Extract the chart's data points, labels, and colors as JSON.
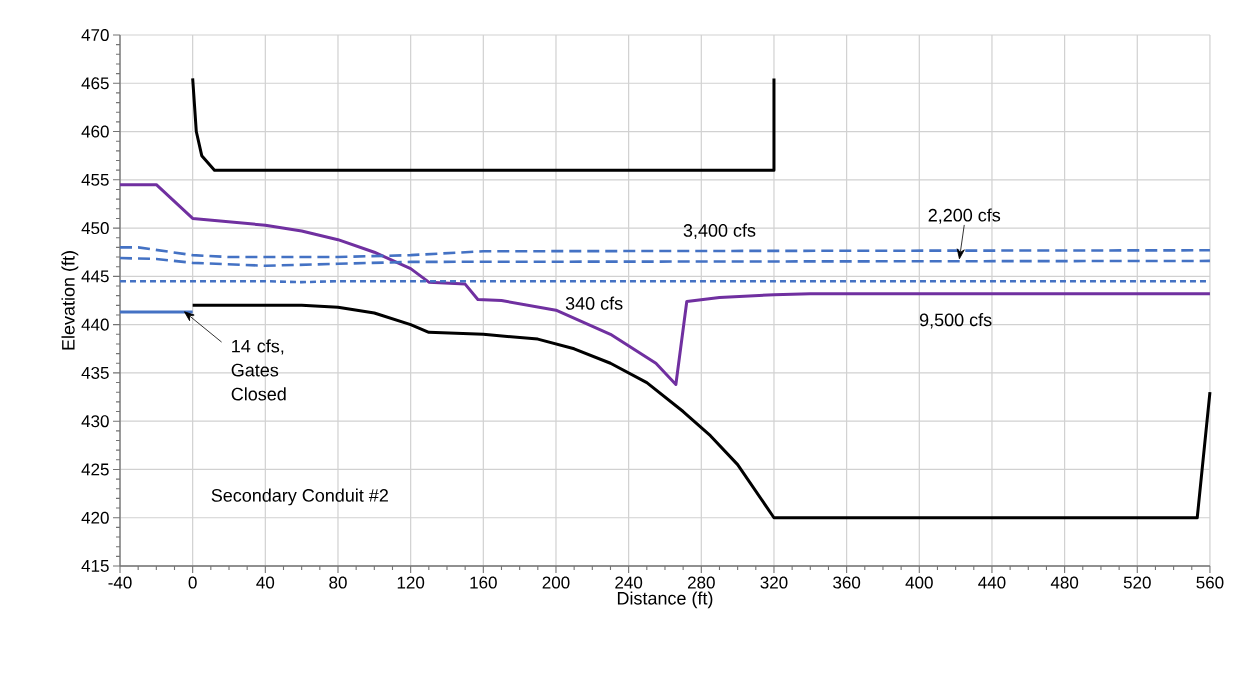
{
  "chart_data": {
    "type": "line",
    "xlabel": "Distance (ft)",
    "ylabel": "Elevation (ft)",
    "xlim": [
      -40,
      560
    ],
    "xticks": [
      -40,
      0,
      40,
      80,
      120,
      160,
      200,
      240,
      280,
      320,
      360,
      400,
      440,
      480,
      520,
      560
    ],
    "ylim": [
      415,
      470
    ],
    "yticks": [
      415,
      420,
      425,
      430,
      435,
      440,
      445,
      450,
      455,
      460,
      465,
      470
    ],
    "grid": true,
    "series": [
      {
        "color": "#000000",
        "line_style": "solid",
        "x": [
          0,
          2,
          5,
          12,
          320,
          320
        ],
        "values": [
          465.5,
          460,
          457.5,
          456,
          456,
          465.5
        ]
      },
      {
        "color": "#000000",
        "line_style": "solid",
        "x": [
          0,
          60,
          80,
          100,
          120,
          130,
          160,
          190,
          210,
          230,
          250,
          270,
          285,
          300,
          320,
          553,
          560
        ],
        "values": [
          442,
          442,
          441.8,
          441.2,
          440,
          439.2,
          439,
          438.5,
          437.5,
          436,
          434,
          431,
          428.5,
          425.5,
          420,
          420,
          433
        ]
      },
      {
        "color": "#7030a0",
        "line_style": "solid",
        "x": [
          -40,
          -20,
          0,
          40,
          60,
          80,
          100,
          120,
          130,
          150,
          157,
          170,
          200,
          230,
          255,
          266,
          272,
          290,
          320,
          340,
          560
        ],
        "values": [
          454.5,
          454.5,
          451,
          450.3,
          449.7,
          448.8,
          447.5,
          445.8,
          444.4,
          444.2,
          442.6,
          442.5,
          441.5,
          439,
          436,
          433.8,
          442.4,
          442.8,
          443.1,
          443.2,
          443.2
        ]
      },
      {
        "color": "#4472c4",
        "line_style": "dashed",
        "x": [
          -40,
          -30,
          0,
          20,
          80,
          120,
          160,
          560
        ],
        "values": [
          448,
          448,
          447.2,
          447,
          447,
          447.2,
          447.6,
          447.7
        ]
      },
      {
        "color": "#4472c4",
        "line_style": "dashed",
        "x": [
          -40,
          -20,
          0,
          40,
          80,
          120,
          560
        ],
        "values": [
          446.9,
          446.8,
          446.4,
          446.1,
          446.3,
          446.5,
          446.6
        ]
      },
      {
        "color": "#4472c4",
        "line_style": "dotted",
        "x": [
          -40,
          40,
          60,
          80,
          560
        ],
        "values": [
          444.5,
          444.5,
          444.4,
          444.5,
          444.5
        ]
      },
      {
        "color": "#4472c4",
        "line_style": "solid",
        "x": [
          -40,
          0
        ],
        "values": [
          441.3,
          441.3
        ]
      }
    ],
    "annotations": [
      {
        "text": "3,400 cfs",
        "x": 290,
        "y": 447.7
      },
      {
        "text": "2,200 cfs",
        "x": 422,
        "y": 446.6
      },
      {
        "text": "340 cfs",
        "x": 221,
        "y": 444.5
      },
      {
        "text": "9,500 cfs",
        "x": 420,
        "y": 443.2
      },
      {
        "text": "14 cfs, Gates Closed",
        "x": -5,
        "y": 441.3
      },
      "Secondary Conduit #2"
    ]
  }
}
